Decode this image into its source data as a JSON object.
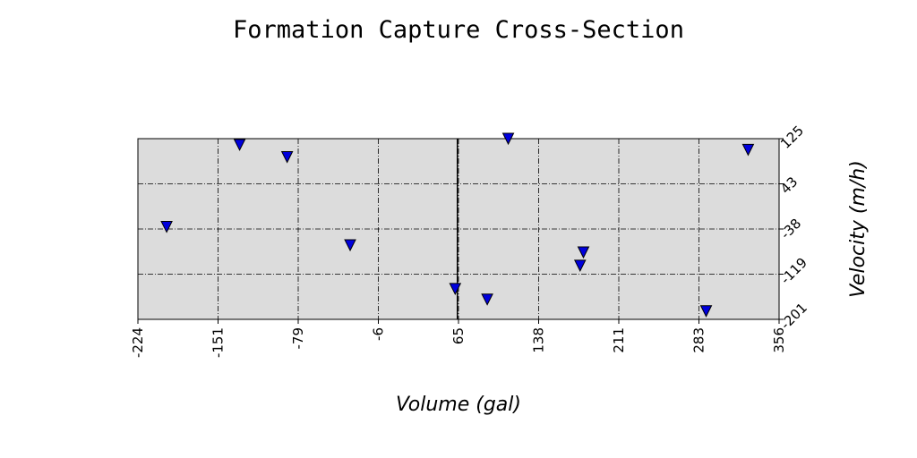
{
  "chart_data": {
    "type": "scatter",
    "title": "Formation Capture Cross-Section",
    "xlabel": "Volume (gal)",
    "ylabel": "Velocity (m/h)",
    "xlim": [
      -224,
      356
    ],
    "ylim": [
      -201,
      125
    ],
    "x_ticks": [
      "-224",
      "-151",
      "-79",
      "-6",
      "65",
      "138",
      "211",
      "283",
      "356"
    ],
    "y_ticks": [
      "-201",
      "-119",
      "-38",
      "43",
      "125"
    ],
    "y_axis_side": "right",
    "grid": true,
    "vertical_line_x": 65,
    "marker": "triangle-down",
    "colors": {
      "marker_fill": "#0000dd",
      "plot_background": "#dcdcdc"
    },
    "points": [
      {
        "x": -198,
        "y": -34
      },
      {
        "x": -132,
        "y": 114
      },
      {
        "x": -89,
        "y": 92
      },
      {
        "x": -32,
        "y": -67
      },
      {
        "x": 63,
        "y": -146
      },
      {
        "x": 92,
        "y": -165
      },
      {
        "x": 111,
        "y": 125
      },
      {
        "x": 176,
        "y": -104
      },
      {
        "x": 179,
        "y": -80
      },
      {
        "x": 290,
        "y": -186
      },
      {
        "x": 328,
        "y": 105
      }
    ]
  }
}
